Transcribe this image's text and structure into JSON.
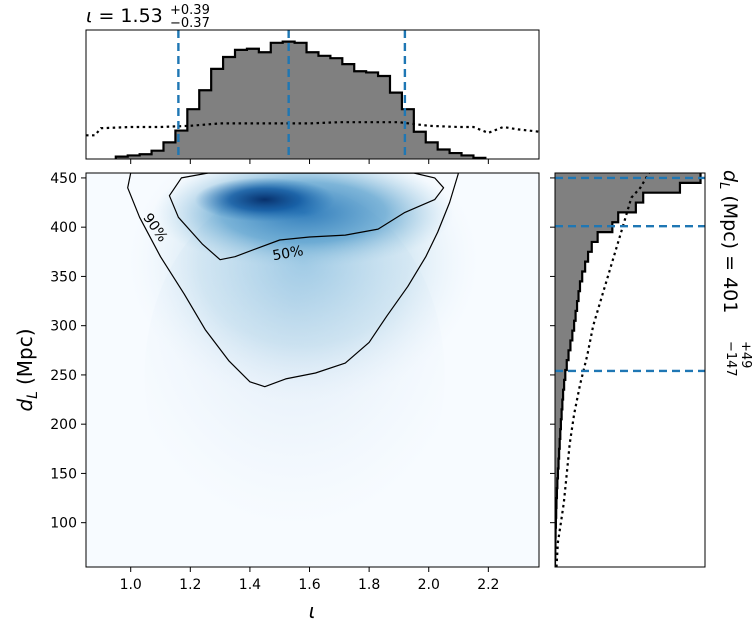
{
  "chart_data": [
    {
      "type": "heatmap",
      "panel": "joint",
      "title": "",
      "xlabel": "ι",
      "ylabel_symbol": "d",
      "ylabel_subscript": "L",
      "ylabel_unit": "(Mpc)",
      "xlim": [
        0.85,
        2.37
      ],
      "ylim": [
        55,
        455
      ],
      "xticks": [
        1.0,
        1.2,
        1.4,
        1.6,
        1.8,
        2.0,
        2.2
      ],
      "xtick_labels": [
        "1.0",
        "1.2",
        "1.4",
        "1.6",
        "1.8",
        "2.0",
        "2.2"
      ],
      "yticks": [
        100,
        150,
        200,
        250,
        300,
        350,
        400,
        450
      ],
      "ytick_labels": [
        "100",
        "150",
        "200",
        "250",
        "300",
        "350",
        "400",
        "450"
      ],
      "colormap": "Blues",
      "density_peak": {
        "x": 1.45,
        "y": 428
      },
      "contours": [
        {
          "level": "50%",
          "label": "50%",
          "label_at": {
            "x": 1.53,
            "y": 369
          },
          "points": [
            [
              1.26,
              455
            ],
            [
              1.95,
              455
            ],
            [
              2.02,
              450
            ],
            [
              2.05,
              440
            ],
            [
              2.02,
              428
            ],
            [
              1.92,
              415
            ],
            [
              1.83,
              398
            ],
            [
              1.72,
              392
            ],
            [
              1.6,
              390
            ],
            [
              1.5,
              387
            ],
            [
              1.42,
              378
            ],
            [
              1.35,
              370
            ],
            [
              1.3,
              367
            ],
            [
              1.24,
              383
            ],
            [
              1.16,
              410
            ],
            [
              1.13,
              432
            ],
            [
              1.17,
              450
            ]
          ]
        },
        {
          "level": "90%",
          "label": "90%",
          "label_at": {
            "x": 1.07,
            "y": 397
          },
          "points": [
            [
              1.0,
              455
            ],
            [
              2.1,
              455
            ],
            [
              2.07,
              425
            ],
            [
              2.03,
              395
            ],
            [
              1.99,
              370
            ],
            [
              1.93,
              340
            ],
            [
              1.86,
              310
            ],
            [
              1.8,
              283
            ],
            [
              1.72,
              262
            ],
            [
              1.62,
              252
            ],
            [
              1.52,
              246
            ],
            [
              1.45,
              238
            ],
            [
              1.4,
              243
            ],
            [
              1.33,
              264
            ],
            [
              1.25,
              296
            ],
            [
              1.18,
              332
            ],
            [
              1.1,
              370
            ],
            [
              1.03,
              410
            ],
            [
              0.99,
              440
            ]
          ]
        }
      ]
    },
    {
      "type": "bar",
      "panel": "top-marginal",
      "title_symbol": "ι",
      "title_value": " = 1.53",
      "title_plus": "+0.39",
      "title_minus": "−0.37",
      "xlim": [
        0.85,
        2.37
      ],
      "bin_edges": [
        0.95,
        0.99,
        1.03,
        1.07,
        1.11,
        1.15,
        1.19,
        1.23,
        1.27,
        1.31,
        1.35,
        1.39,
        1.43,
        1.47,
        1.51,
        1.55,
        1.59,
        1.63,
        1.67,
        1.71,
        1.75,
        1.79,
        1.83,
        1.87,
        1.91,
        1.95,
        1.99,
        2.03,
        2.07,
        2.11,
        2.15,
        2.19
      ],
      "values": [
        0.02,
        0.03,
        0.04,
        0.07,
        0.14,
        0.24,
        0.42,
        0.58,
        0.76,
        0.86,
        0.92,
        0.93,
        0.9,
        0.98,
        0.99,
        0.98,
        0.9,
        0.87,
        0.85,
        0.8,
        0.74,
        0.73,
        0.7,
        0.56,
        0.42,
        0.23,
        0.14,
        0.08,
        0.05,
        0.03,
        0.01
      ],
      "prior_x": [
        0.85,
        0.88,
        0.9,
        1.0,
        1.1,
        1.2,
        1.3,
        1.4,
        1.5,
        1.6,
        1.7,
        1.8,
        1.9,
        2.0,
        2.1,
        2.15,
        2.2,
        2.25,
        2.3,
        2.37
      ],
      "prior_values": [
        0.2,
        0.2,
        0.26,
        0.27,
        0.27,
        0.28,
        0.3,
        0.3,
        0.3,
        0.3,
        0.31,
        0.31,
        0.31,
        0.28,
        0.27,
        0.27,
        0.22,
        0.27,
        0.25,
        0.23
      ],
      "quantile_lines": [
        1.16,
        1.53,
        1.92
      ],
      "fill_color": "#808080",
      "line_color": "#1f77b4"
    },
    {
      "type": "bar",
      "panel": "right-marginal",
      "orientation": "horizontal",
      "label_symbol": "d",
      "label_subscript": "L",
      "label_unit": " (Mpc) = 401",
      "label_plus": "+49",
      "label_minus": "−147",
      "ylim": [
        55,
        455
      ],
      "bin_edges": [
        55,
        65,
        75,
        85,
        95,
        105,
        115,
        125,
        135,
        145,
        155,
        165,
        175,
        185,
        195,
        205,
        215,
        225,
        235,
        245,
        255,
        265,
        275,
        285,
        295,
        305,
        315,
        325,
        335,
        345,
        355,
        365,
        375,
        385,
        395,
        405,
        415,
        425,
        435,
        445,
        455
      ],
      "values": [
        0.0,
        0.002,
        0.003,
        0.004,
        0.006,
        0.008,
        0.01,
        0.013,
        0.016,
        0.02,
        0.024,
        0.028,
        0.032,
        0.036,
        0.04,
        0.045,
        0.05,
        0.055,
        0.062,
        0.07,
        0.08,
        0.092,
        0.105,
        0.118,
        0.13,
        0.14,
        0.15,
        0.16,
        0.17,
        0.185,
        0.205,
        0.225,
        0.25,
        0.29,
        0.39,
        0.43,
        0.55,
        0.6,
        0.85,
        0.99
      ],
      "prior_y": [
        55,
        80,
        100,
        120,
        150,
        180,
        210,
        240,
        270,
        300,
        330,
        350,
        370,
        390,
        410,
        430,
        440,
        450,
        455
      ],
      "prior_values": [
        0.01,
        0.02,
        0.04,
        0.06,
        0.08,
        0.1,
        0.13,
        0.17,
        0.22,
        0.26,
        0.32,
        0.36,
        0.4,
        0.44,
        0.48,
        0.52,
        0.58,
        0.62,
        0.64
      ],
      "quantile_lines": [
        254,
        401,
        450
      ],
      "fill_color": "#808080",
      "line_color": "#1f77b4"
    }
  ]
}
